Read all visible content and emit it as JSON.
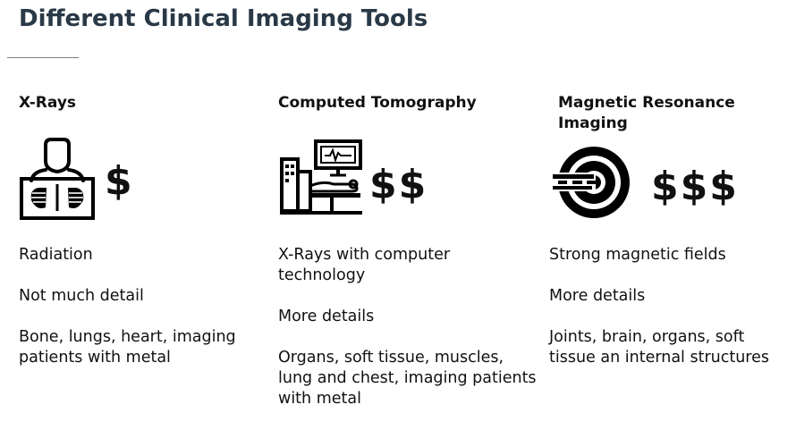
{
  "title": "Different Clinical Imaging Tools",
  "columns": [
    {
      "heading": "X-Rays",
      "icon": "xray-patient-icon",
      "cost": "$",
      "points": [
        "Radiation",
        "Not much detail",
        "Bone, lungs, heart, imaging patients with metal"
      ]
    },
    {
      "heading": "Computed Tomography",
      "icon": "ct-scanner-icon",
      "cost": "$$",
      "points": [
        "X-Rays with computer technology",
        "More details",
        "Organs, soft tissue, muscles, lung and chest, imaging patients with metal"
      ]
    },
    {
      "heading": "Magnetic Resonance Imaging",
      "icon": "mri-scanner-icon",
      "cost": "$$$",
      "points": [
        "Strong magnetic fields",
        "More details",
        "Joints, brain, organs, soft tissue an internal structures"
      ]
    }
  ]
}
